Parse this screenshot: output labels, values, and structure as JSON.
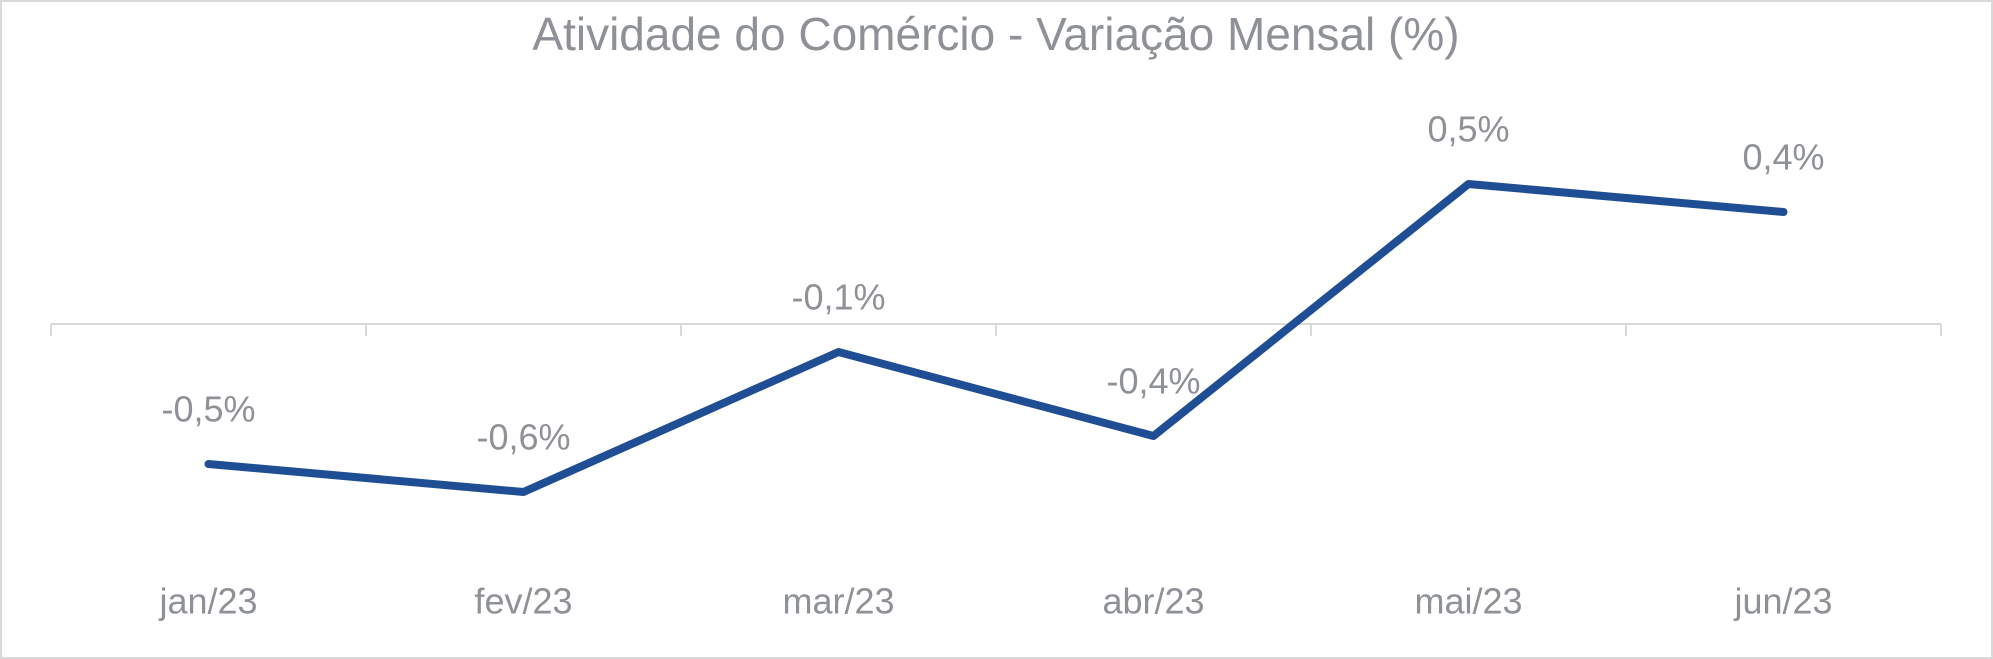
{
  "chart_data": {
    "type": "line",
    "title": "Atividade do Comércio - Variação Mensal (%)",
    "categories": [
      "jan/23",
      "fev/23",
      "mar/23",
      "abr/23",
      "mai/23",
      "jun/23"
    ],
    "values": [
      -0.5,
      -0.6,
      -0.1,
      -0.4,
      0.5,
      0.4
    ],
    "value_labels": [
      "-0,5%",
      "-0,6%",
      "-0,1%",
      "-0,4%",
      "0,5%",
      "0,4%"
    ],
    "color": "#1f4e94",
    "ylim": [
      -0.8,
      0.8
    ]
  }
}
